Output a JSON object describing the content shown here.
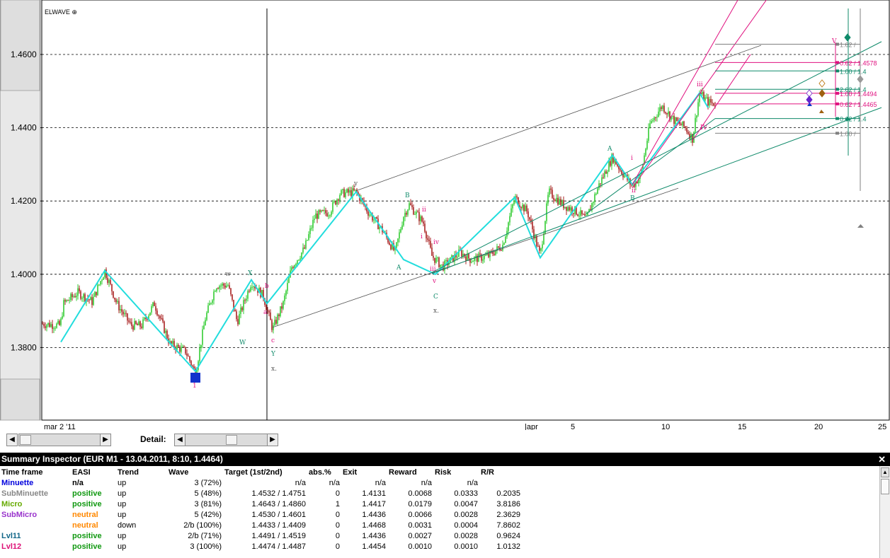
{
  "chart": {
    "indicator_label": "ELWAVE ⊕",
    "y_ticks": [
      "1.4600",
      "1.4400",
      "1.4200",
      "1.4000",
      "1.3800"
    ],
    "x_ticks": [
      "mar 2 '11",
      "|apr",
      "5",
      "10",
      "15",
      "20",
      "25"
    ],
    "wave_labels": [
      "i",
      "ii",
      "iii",
      "iv",
      "v",
      "A",
      "B",
      "C",
      "W",
      "X",
      "Y",
      "x.",
      "y",
      "a",
      "b",
      "c",
      "IV",
      "V"
    ],
    "target_labels": [
      "1.62 /",
      "0.62 / 1.4578",
      "1.00 / 1.4",
      "2.62 / 1.4",
      "1.00 / 1.4494",
      "0.62 / 1.4465",
      "0.62 / 1.4",
      "1.00 /"
    ],
    "colors": {
      "up_candle": "#33cc33",
      "down_candle": "#aa2222",
      "zigzag": "#22dddd",
      "magenta": "#e0107f",
      "teal": "#0f8a6a",
      "grey": "#808080"
    }
  },
  "scrollbar": {
    "detail_label": "Detail:",
    "left_arrow": "◀",
    "right_arrow": "▶"
  },
  "panel": {
    "title": "Summary Inspector (EUR M1 - 13.04.2011, 8:10, 1.4464)",
    "close": "✕",
    "headers": [
      "Time frame",
      "EASI",
      "Trend",
      "Wave",
      "Target (1st/2nd)",
      "abs.%",
      "Exit",
      "Reward",
      "Risk",
      "R/R"
    ],
    "rows": [
      {
        "tf": "Minuette",
        "tfColor": "#0000dd",
        "easi": "n/a",
        "easiColor": "#000000",
        "trend": "up",
        "wave": "3 (72%)",
        "target": "n/a",
        "abs": "n/a",
        "exit": "n/a",
        "reward": "n/a",
        "risk": "n/a",
        "rr": ""
      },
      {
        "tf": "SubMinuette",
        "tfColor": "#888888",
        "easi": "positive",
        "easiColor": "#119911",
        "trend": "up",
        "wave": "5 (48%)",
        "target": "1.4532 / 1.4751",
        "abs": "0",
        "exit": "1.4131",
        "reward": "0.0068",
        "risk": "0.0333",
        "rr": "0.2035"
      },
      {
        "tf": "Micro",
        "tfColor": "#66aa00",
        "easi": "positive",
        "easiColor": "#119911",
        "trend": "up",
        "wave": "3 (81%)",
        "target": "1.4643 / 1.4860",
        "abs": "1",
        "exit": "1.4417",
        "reward": "0.0179",
        "risk": "0.0047",
        "rr": "3.8186"
      },
      {
        "tf": "SubMicro",
        "tfColor": "#9933cc",
        "easi": "neutral",
        "easiColor": "#ff8800",
        "trend": "up",
        "wave": "5 (42%)",
        "target": "1.4530 / 1.4601",
        "abs": "0",
        "exit": "1.4436",
        "reward": "0.0066",
        "risk": "0.0028",
        "rr": "2.3629"
      },
      {
        "tf": "",
        "tfColor": "#000000",
        "easi": "neutral",
        "easiColor": "#ff8800",
        "trend": "down",
        "wave": "2/b (100%)",
        "target": "1.4433 / 1.4409",
        "abs": "0",
        "exit": "1.4468",
        "reward": "0.0031",
        "risk": "0.0004",
        "rr": "7.8602"
      },
      {
        "tf": "Lvl11",
        "tfColor": "#116688",
        "easi": "positive",
        "easiColor": "#119911",
        "trend": "up",
        "wave": "2/b (71%)",
        "target": "1.4491 / 1.4519",
        "abs": "0",
        "exit": "1.4436",
        "reward": "0.0027",
        "risk": "0.0028",
        "rr": "0.9624"
      },
      {
        "tf": "Lvl12",
        "tfColor": "#dd1177",
        "easi": "positive",
        "easiColor": "#119911",
        "trend": "up",
        "wave": "3 (100%)",
        "target": "1.4474 / 1.4487",
        "abs": "0",
        "exit": "1.4454",
        "reward": "0.0010",
        "risk": "0.0010",
        "rr": "1.0132"
      }
    ]
  }
}
